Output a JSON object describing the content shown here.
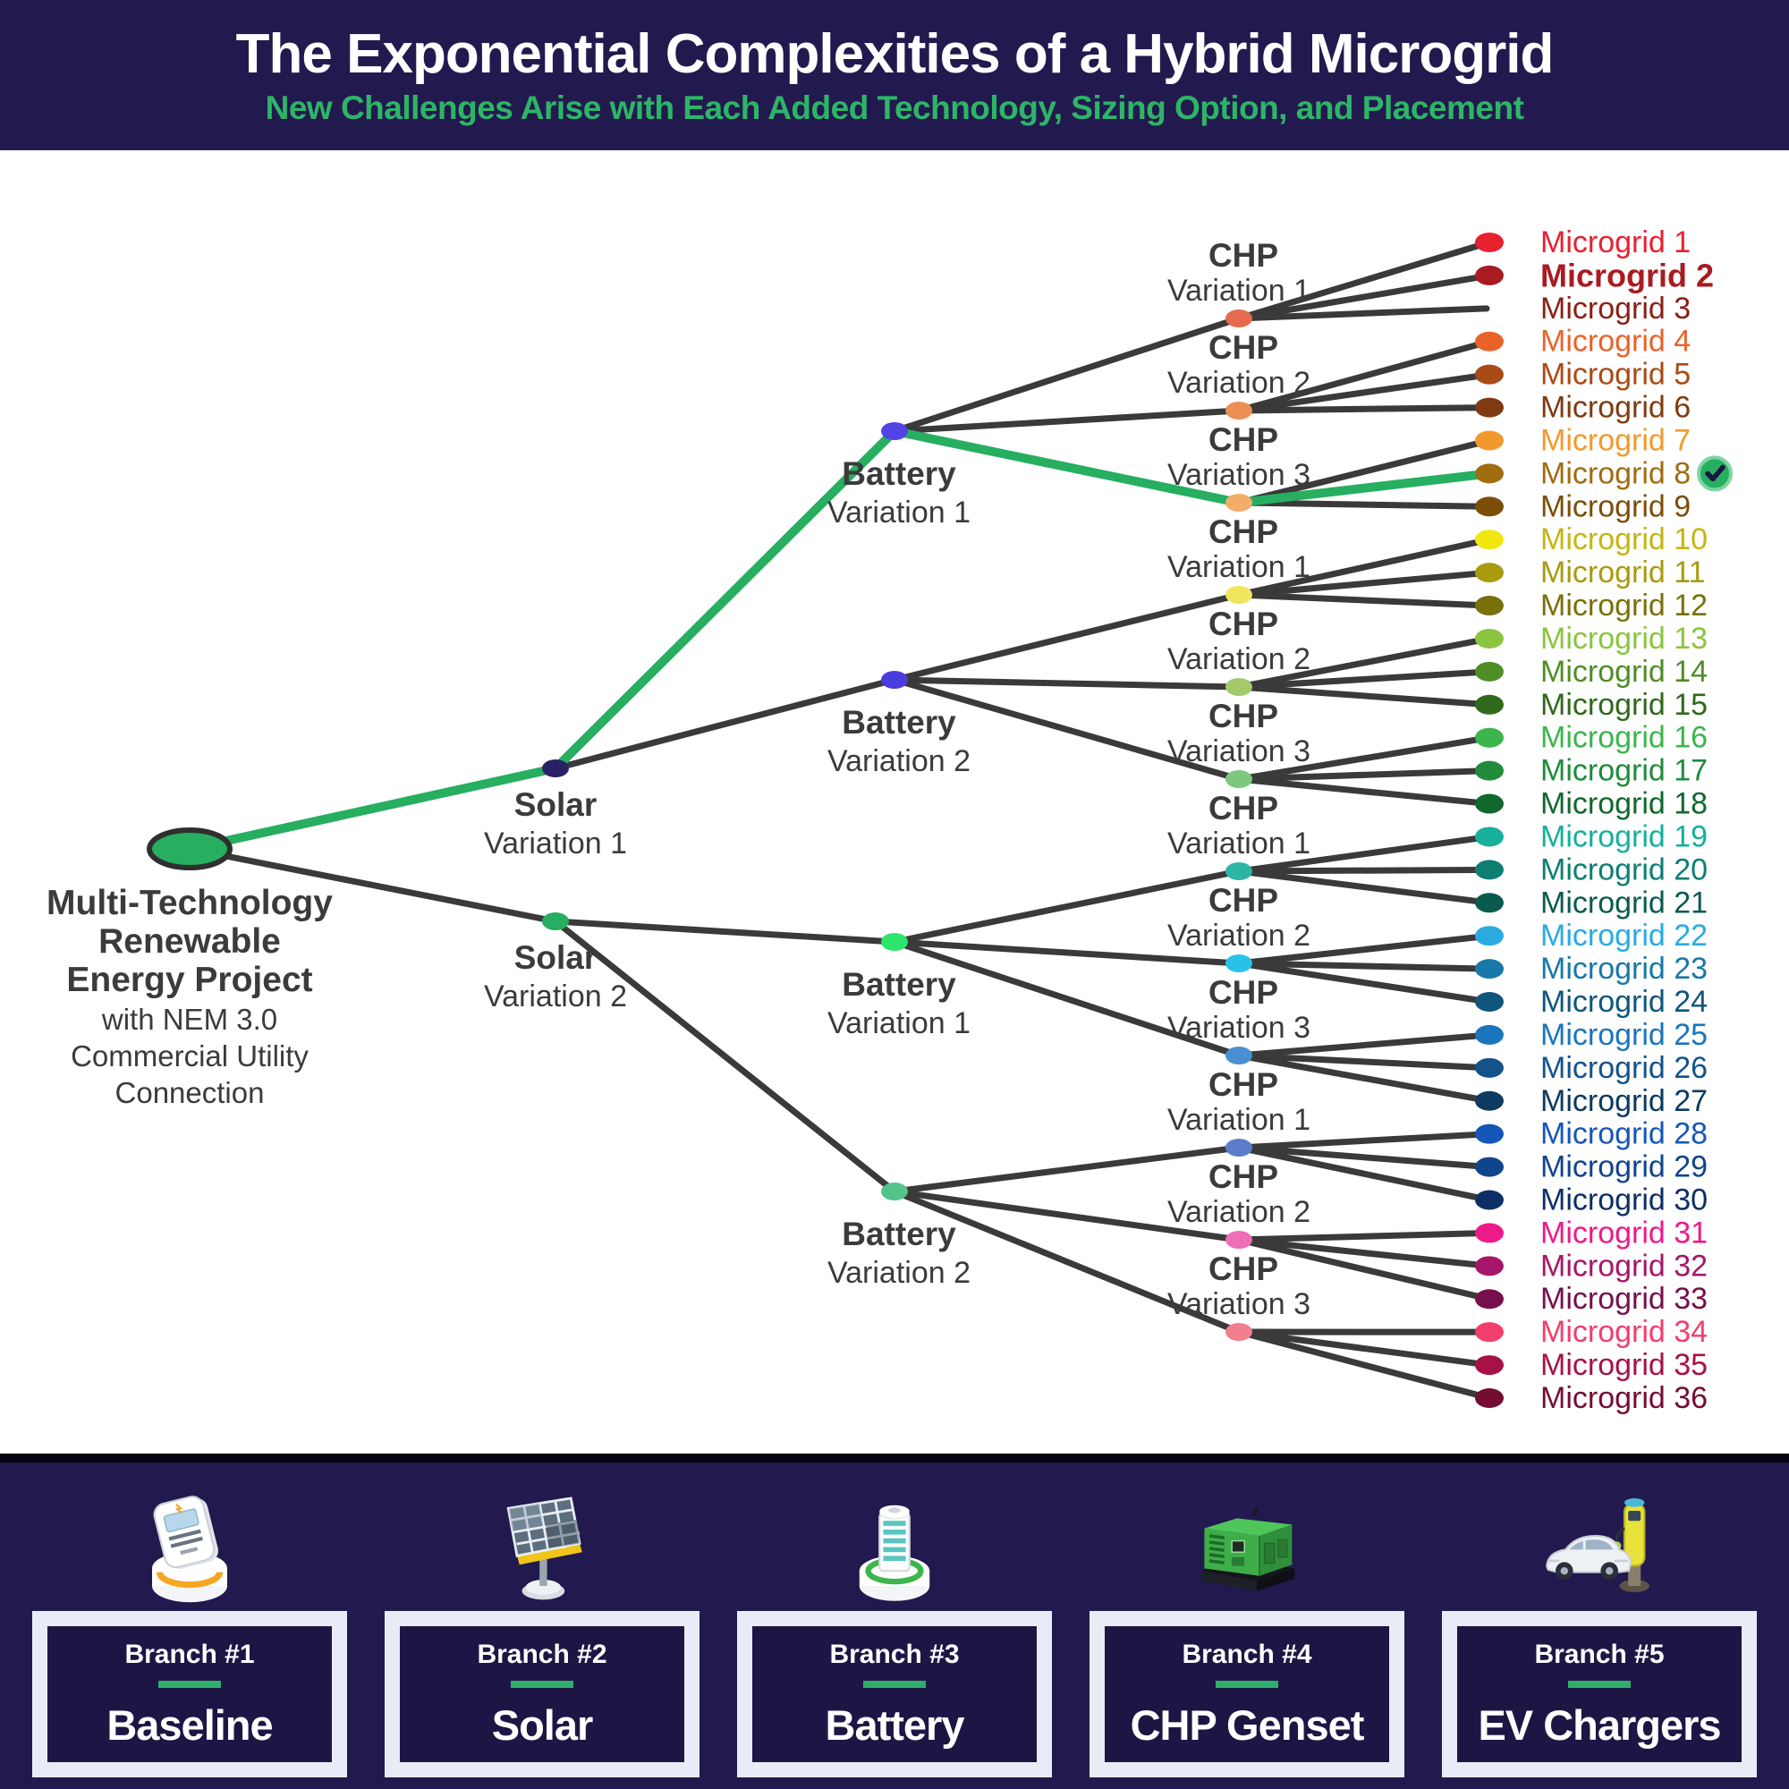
{
  "header": {
    "title": "The Exponential Complexities of a Hybrid Microgrid",
    "subtitle": "New Challenges Arise with Each Added Technology, Sizing Option, and Placement",
    "bg_color": "#221a4e",
    "title_color": "#ffffff",
    "subtitle_color": "#2db567"
  },
  "tree": {
    "edge_color": "#3a3a3a",
    "highlight_color": "#27ae60",
    "label_color": "#3b3b3b",
    "root": {
      "label_bold_lines": [
        "Multi-Technology",
        "Renewable",
        "Energy Project"
      ],
      "label_lines": [
        "with NEM 3.0",
        "Commercial Utility",
        "Connection"
      ],
      "color": "#27ae60",
      "stroke": "#2f2f2f"
    },
    "solar_nodes": [
      {
        "label": "Solar",
        "sublabel": "Variation 1",
        "color": "#292166"
      },
      {
        "label": "Solar",
        "sublabel": "Variation 2",
        "color": "#27ae60"
      }
    ],
    "battery_nodes": [
      {
        "label": "Battery",
        "sublabel": "Variation 1",
        "color": "#5143e6"
      },
      {
        "label": "Battery",
        "sublabel": "Variation 2",
        "color": "#4a3cdc"
      },
      {
        "label": "Battery",
        "sublabel": "Variation 1",
        "color": "#2de46d"
      },
      {
        "label": "Battery",
        "sublabel": "Variation 2",
        "color": "#55c28c"
      }
    ],
    "chp_nodes": [
      {
        "label": "CHP",
        "sublabel": "Variation 1",
        "color": "#e66a4d"
      },
      {
        "label": "CHP",
        "sublabel": "Variation 2",
        "color": "#ec8f55"
      },
      {
        "label": "CHP",
        "sublabel": "Variation 3",
        "color": "#f2ad69"
      },
      {
        "label": "CHP",
        "sublabel": "Variation 1",
        "color": "#f0e65c"
      },
      {
        "label": "CHP",
        "sublabel": "Variation 2",
        "color": "#a6c96b"
      },
      {
        "label": "CHP",
        "sublabel": "Variation 3",
        "color": "#7dc87f"
      },
      {
        "label": "CHP",
        "sublabel": "Variation 1",
        "color": "#2cb5a3"
      },
      {
        "label": "CHP",
        "sublabel": "Variation 2",
        "color": "#28c2e9"
      },
      {
        "label": "CHP",
        "sublabel": "Variation 3",
        "color": "#4a8fd2"
      },
      {
        "label": "CHP",
        "sublabel": "Variation 1",
        "color": "#5b7dc9"
      },
      {
        "label": "CHP",
        "sublabel": "Variation 2",
        "color": "#ee6fb3"
      },
      {
        "label": "CHP",
        "sublabel": "Variation 3",
        "color": "#f27f8d"
      }
    ],
    "leaves": [
      {
        "label": "Microgrid 1",
        "color": "#e8212e",
        "dot": true,
        "bold": false,
        "checked": false
      },
      {
        "label": "Microgrid 2",
        "color": "#a81b21",
        "dot": true,
        "bold": true,
        "checked": false
      },
      {
        "label": "Microgrid 3",
        "color": "#8a1f15",
        "dot": false,
        "bold": false,
        "checked": false
      },
      {
        "label": "Microgrid 4",
        "color": "#e96329",
        "dot": true,
        "bold": false,
        "checked": false
      },
      {
        "label": "Microgrid 5",
        "color": "#aa4a15",
        "dot": true,
        "bold": false,
        "checked": false
      },
      {
        "label": "Microgrid 6",
        "color": "#7e3a10",
        "dot": true,
        "bold": false,
        "checked": false
      },
      {
        "label": "Microgrid 7",
        "color": "#f19a2b",
        "dot": true,
        "bold": false,
        "checked": false
      },
      {
        "label": "Microgrid 8",
        "color": "#a06c10",
        "dot": true,
        "bold": false,
        "checked": true
      },
      {
        "label": "Microgrid 9",
        "color": "#7c4e08",
        "dot": true,
        "bold": false,
        "checked": false
      },
      {
        "label": "Microgrid 10",
        "color": "#c4b513",
        "dot_color": "#f2e611",
        "dot": true,
        "bold": false,
        "checked": false
      },
      {
        "label": "Microgrid 11",
        "color": "#a89b10",
        "dot": true,
        "bold": false,
        "checked": false
      },
      {
        "label": "Microgrid 12",
        "color": "#7a700b",
        "dot": true,
        "bold": false,
        "checked": false
      },
      {
        "label": "Microgrid 13",
        "color": "#8bc540",
        "dot": true,
        "bold": false,
        "checked": false
      },
      {
        "label": "Microgrid 14",
        "color": "#4f8d27",
        "dot": true,
        "bold": false,
        "checked": false
      },
      {
        "label": "Microgrid 15",
        "color": "#30691b",
        "dot": true,
        "bold": false,
        "checked": false
      },
      {
        "label": "Microgrid 16",
        "color": "#3cb54c",
        "dot": true,
        "bold": false,
        "checked": false
      },
      {
        "label": "Microgrid 17",
        "color": "#1f8b3b",
        "dot": true,
        "bold": false,
        "checked": false
      },
      {
        "label": "Microgrid 18",
        "color": "#10682c",
        "dot": true,
        "bold": false,
        "checked": false
      },
      {
        "label": "Microgrid 19",
        "color": "#16b09b",
        "dot": true,
        "bold": false,
        "checked": false
      },
      {
        "label": "Microgrid 20",
        "color": "#0e7e72",
        "dot": true,
        "bold": false,
        "checked": false
      },
      {
        "label": "Microgrid 21",
        "color": "#0a5a50",
        "dot": true,
        "bold": false,
        "checked": false
      },
      {
        "label": "Microgrid 22",
        "color": "#29abe2",
        "dot": true,
        "bold": false,
        "checked": false
      },
      {
        "label": "Microgrid 23",
        "color": "#1878a8",
        "dot": true,
        "bold": false,
        "checked": false
      },
      {
        "label": "Microgrid 24",
        "color": "#0e567c",
        "dot": true,
        "bold": false,
        "checked": false
      },
      {
        "label": "Microgrid 25",
        "color": "#1b75bc",
        "dot": true,
        "bold": false,
        "checked": false
      },
      {
        "label": "Microgrid 26",
        "color": "#14528a",
        "dot": true,
        "bold": false,
        "checked": false
      },
      {
        "label": "Microgrid 27",
        "color": "#0d3a60",
        "dot": true,
        "bold": false,
        "checked": false
      },
      {
        "label": "Microgrid 28",
        "color": "#1656b8",
        "dot": true,
        "bold": false,
        "checked": false
      },
      {
        "label": "Microgrid 29",
        "color": "#12448c",
        "dot": true,
        "bold": false,
        "checked": false
      },
      {
        "label": "Microgrid 30",
        "color": "#0d2f66",
        "dot": true,
        "bold": false,
        "checked": false
      },
      {
        "label": "Microgrid 31",
        "color": "#ec1a8b",
        "dot": true,
        "bold": false,
        "checked": false
      },
      {
        "label": "Microgrid 32",
        "color": "#a6166a",
        "dot": true,
        "bold": false,
        "checked": false
      },
      {
        "label": "Microgrid 33",
        "color": "#75104c",
        "dot": true,
        "bold": false,
        "checked": false
      },
      {
        "label": "Microgrid 34",
        "color": "#f23e6c",
        "dot": true,
        "bold": false,
        "checked": false
      },
      {
        "label": "Microgrid 35",
        "color": "#a61247",
        "dot": true,
        "bold": false,
        "checked": false
      },
      {
        "label": "Microgrid 36",
        "color": "#750d33",
        "dot": true,
        "bold": false,
        "checked": false
      }
    ],
    "check_badge": {
      "fill": "#27ae60",
      "ring": "#7fd4a4",
      "check_color": "#1b1446"
    }
  },
  "footer": {
    "bg_color": "#221a4e",
    "box_frame_color": "#e9ecf7",
    "box_inner_color": "#1d1645",
    "bar_color": "#2fae6b",
    "branches": [
      {
        "number": "Branch #1",
        "label": "Baseline",
        "icon": "smart-meter-icon"
      },
      {
        "number": "Branch #2",
        "label": "Solar",
        "icon": "solar-panel-icon"
      },
      {
        "number": "Branch #3",
        "label": "Battery",
        "icon": "battery-icon"
      },
      {
        "number": "Branch #4",
        "label": "CHP Genset",
        "icon": "chp-genset-icon"
      },
      {
        "number": "Branch #5",
        "label": "EV Chargers",
        "icon": "ev-charger-icon"
      }
    ]
  }
}
